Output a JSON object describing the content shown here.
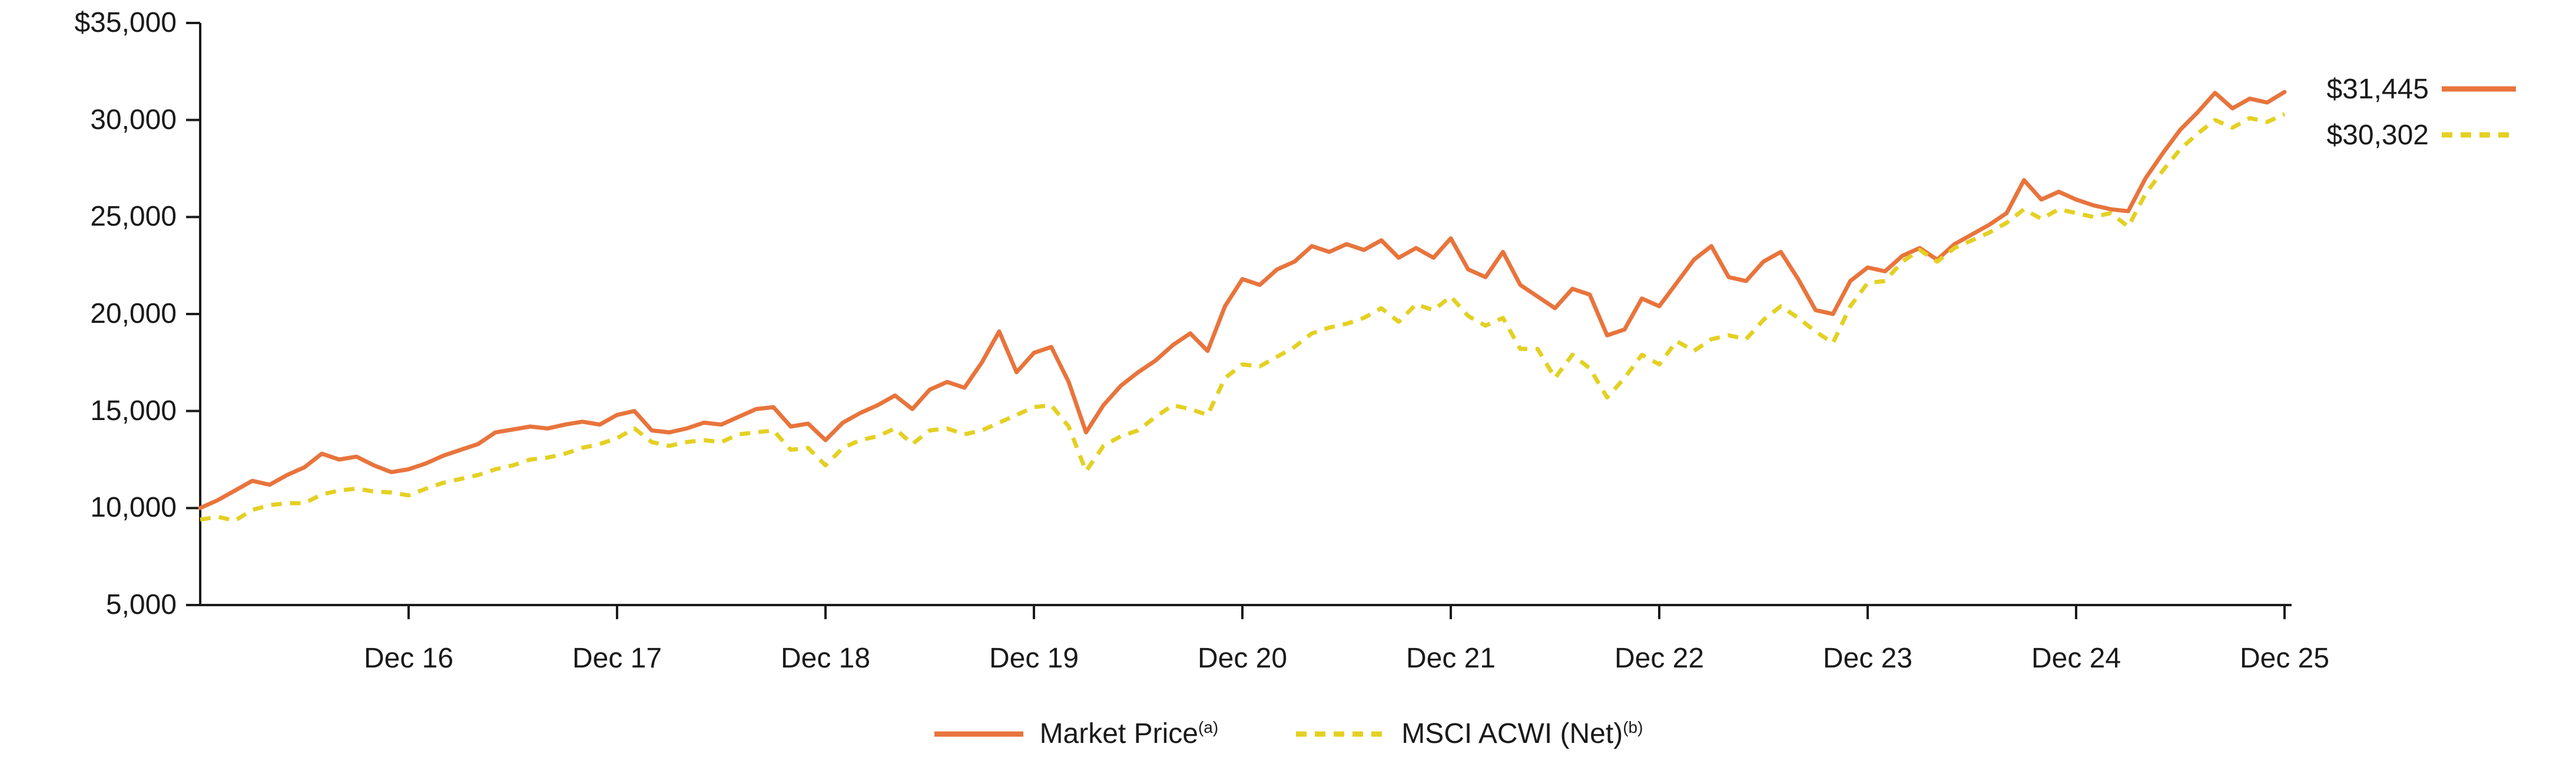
{
  "chart_data": {
    "type": "line",
    "x_unit": "month",
    "x_start": "Dec 15",
    "x_end": "Dec 25",
    "ylim": [
      5000,
      35000
    ],
    "grid": false,
    "legend_position": "bottom-center",
    "axis_color": "#1a1a1a",
    "y_ticks": [
      {
        "label": "$35,000",
        "value": 35000
      },
      {
        "label": "30,000",
        "value": 30000
      },
      {
        "label": "25,000",
        "value": 25000
      },
      {
        "label": "20,000",
        "value": 20000
      },
      {
        "label": "15,000",
        "value": 15000
      },
      {
        "label": "10,000",
        "value": 10000
      },
      {
        "label": "5,000",
        "value": 5000
      }
    ],
    "x_ticks": [
      {
        "label": "Dec 16",
        "index": 12
      },
      {
        "label": "Dec 17",
        "index": 24
      },
      {
        "label": "Dec 18",
        "index": 36
      },
      {
        "label": "Dec 19",
        "index": 48
      },
      {
        "label": "Dec 20",
        "index": 60
      },
      {
        "label": "Dec 21",
        "index": 72
      },
      {
        "label": "Dec 22",
        "index": 84
      },
      {
        "label": "Dec 23",
        "index": 96
      },
      {
        "label": "Dec 24",
        "index": 108
      },
      {
        "label": "Dec 25",
        "index": 120
      }
    ],
    "series": [
      {
        "name": "Market Price",
        "footnote": "(a)",
        "end_label": "$31,445",
        "end_value": 31445,
        "color": "#E8743C",
        "dash": null,
        "values": [
          10000,
          10400,
          10900,
          11400,
          11200,
          11700,
          12100,
          12800,
          12500,
          12650,
          12200,
          11850,
          12000,
          12300,
          12700,
          13000,
          13300,
          13900,
          14050,
          14200,
          14100,
          14300,
          14450,
          14300,
          14800,
          15000,
          14000,
          13900,
          14100,
          14400,
          14300,
          14700,
          15100,
          15200,
          14200,
          14350,
          13500,
          14400,
          14900,
          15300,
          15800,
          15100,
          16100,
          16500,
          16200,
          17500,
          19100,
          17000,
          18000,
          18300,
          16500,
          13900,
          15300,
          16300,
          17000,
          17600,
          18400,
          19000,
          18100,
          20400,
          21800,
          21500,
          22300,
          22700,
          23500,
          23200,
          23600,
          23300,
          23800,
          22900,
          23400,
          22900,
          23900,
          22300,
          21900,
          23200,
          21500,
          20900,
          20300,
          21300,
          21000,
          18900,
          19200,
          20800,
          20400,
          21600,
          22800,
          23500,
          21900,
          21700,
          22700,
          23200,
          21800,
          20200,
          20000,
          21700,
          22400,
          22200,
          23000,
          23400,
          22800,
          23600,
          24100,
          24600,
          25200,
          26900,
          25900,
          26300,
          25900,
          25600,
          25400,
          25300,
          27000,
          28300,
          29500,
          30400,
          31400,
          30600,
          31100,
          30900,
          31445
        ]
      },
      {
        "name": "MSCI ACWI (Net)",
        "footnote": "(b)",
        "end_label": "$30,302",
        "end_value": 30302,
        "color": "#E4D022",
        "dash": [
          18,
          14
        ],
        "values": [
          9400,
          9550,
          9350,
          9900,
          10150,
          10250,
          10250,
          10700,
          10900,
          11000,
          10850,
          10800,
          10650,
          11000,
          11300,
          11500,
          11700,
          12000,
          12200,
          12500,
          12600,
          12800,
          13100,
          13300,
          13600,
          14100,
          13400,
          13200,
          13400,
          13500,
          13400,
          13800,
          13900,
          14000,
          13000,
          13100,
          12200,
          13100,
          13500,
          13700,
          14100,
          13300,
          14000,
          14100,
          13800,
          14000,
          14400,
          14800,
          15200,
          15300,
          14200,
          11900,
          13200,
          13700,
          14000,
          14700,
          15300,
          15100,
          14800,
          16700,
          17400,
          17300,
          17800,
          18300,
          19000,
          19300,
          19500,
          19800,
          20300,
          19600,
          20500,
          20200,
          20900,
          19900,
          19400,
          19800,
          18200,
          18200,
          16700,
          17900,
          17200,
          15700,
          16700,
          17900,
          17400,
          18600,
          18100,
          18700,
          18900,
          18700,
          19700,
          20400,
          19800,
          19100,
          18500,
          20400,
          21600,
          21700,
          22700,
          23300,
          22700,
          23400,
          23800,
          24200,
          24700,
          25400,
          24900,
          25400,
          25200,
          25000,
          25200,
          24500,
          26200,
          27400,
          28500,
          29300,
          30000,
          29600,
          30100,
          29900,
          30302
        ]
      }
    ]
  }
}
